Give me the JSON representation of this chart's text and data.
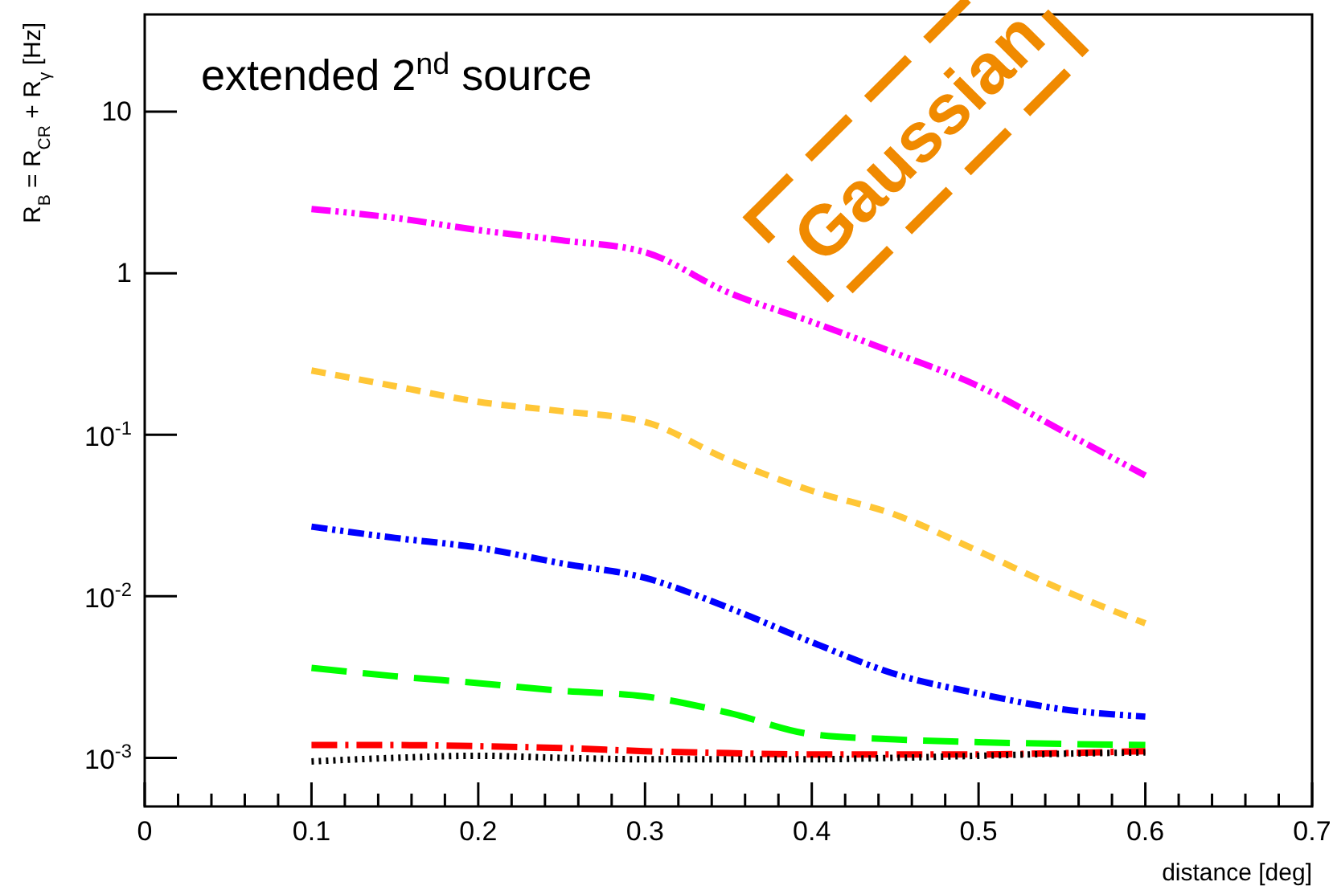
{
  "chart_data": {
    "type": "line",
    "title": "extended 2$^{nd}$ source",
    "xlabel": "distance [deg]",
    "ylabel": "R$_{B}$ = R$_{CR}$ + R$_{γ}$     [Hz]",
    "annotations": [
      "Gaussian"
    ],
    "log": "y",
    "grid": false,
    "marker": "none",
    "xlim": [
      0,
      0.7
    ],
    "xticks": [
      0,
      {
        "value": 0.02,
        "label": null
      },
      {
        "value": 0.04,
        "label": null
      },
      {
        "value": 0.06,
        "label": null
      },
      {
        "value": 0.08,
        "label": null
      },
      0.1,
      {
        "value": 0.12,
        "label": null
      },
      {
        "value": 0.14,
        "label": null
      },
      {
        "value": 0.16,
        "label": null
      },
      {
        "value": 0.18,
        "label": null
      },
      0.2,
      {
        "value": 0.22,
        "label": null
      },
      {
        "value": 0.24,
        "label": null
      },
      {
        "value": 0.26,
        "label": null
      },
      {
        "value": 0.28,
        "label": null
      },
      0.3,
      {
        "value": 0.32,
        "label": null
      },
      {
        "value": 0.34,
        "label": null
      },
      {
        "value": 0.36,
        "label": null
      },
      {
        "value": 0.38,
        "label": null
      },
      0.4,
      {
        "value": 0.42,
        "label": null
      },
      {
        "value": 0.44,
        "label": null
      },
      {
        "value": 0.46,
        "label": null
      },
      {
        "value": 0.48,
        "label": null
      },
      0.5,
      {
        "value": 0.52,
        "label": null
      },
      {
        "value": 0.54,
        "label": null
      },
      {
        "value": 0.56,
        "label": null
      },
      {
        "value": 0.58,
        "label": null
      },
      0.6,
      {
        "value": 0.62,
        "label": null
      },
      {
        "value": 0.64,
        "label": null
      },
      {
        "value": 0.66,
        "label": null
      },
      {
        "value": 0.68,
        "label": null
      },
      0.7
    ],
    "ylim": [
      0.0005,
      40
    ],
    "yticks": [
      {
        "value": 0.001,
        "label": "10$^{-3}$"
      },
      {
        "value": 0.01,
        "label": "10$^{-2}$"
      },
      {
        "value": 0.1,
        "label": "10$^{-1}$"
      },
      1,
      10
    ],
    "x": [
      0.1,
      0.15,
      0.2,
      0.25,
      0.3,
      0.35,
      0.4,
      0.45,
      0.5,
      0.55,
      0.6
    ],
    "series": [
      {
        "color": "#ff00ff",
        "line_style": "dashed",
        "values": [
          2.5,
          2.2,
          1.85,
          1.6,
          1.35,
          0.76,
          0.5,
          0.32,
          0.2,
          0.106,
          0.056
        ]
      },
      {
        "color": "#ffc636",
        "line_style": "dashed",
        "values": [
          0.25,
          0.2,
          0.16,
          0.14,
          0.12,
          0.07,
          0.045,
          0.032,
          0.019,
          0.011,
          0.0068
        ]
      },
      {
        "color": "#0000ff",
        "line_style": "dashed",
        "values": [
          0.027,
          0.023,
          0.02,
          0.016,
          0.013,
          0.0085,
          0.0052,
          0.0033,
          0.0025,
          0.002,
          0.0018
        ]
      },
      {
        "color": "#00ff00",
        "line_style": "dashed",
        "values": [
          0.0036,
          0.0032,
          0.0029,
          0.0026,
          0.0024,
          0.0019,
          0.0014,
          0.0013,
          0.00125,
          0.00122,
          0.0012
        ]
      },
      {
        "color": "#ff0000",
        "line_style": "dashed",
        "values": [
          0.0012,
          0.0012,
          0.00118,
          0.00115,
          0.0011,
          0.00107,
          0.00105,
          0.00105,
          0.00105,
          0.00107,
          0.0011
        ]
      },
      {
        "color": "#000000",
        "line_style": "dotted",
        "values": [
          0.00095,
          0.001,
          0.00103,
          0.001,
          0.00098,
          0.00098,
          0.00098,
          0.001,
          0.00103,
          0.00106,
          0.00108
        ]
      }
    ]
  }
}
